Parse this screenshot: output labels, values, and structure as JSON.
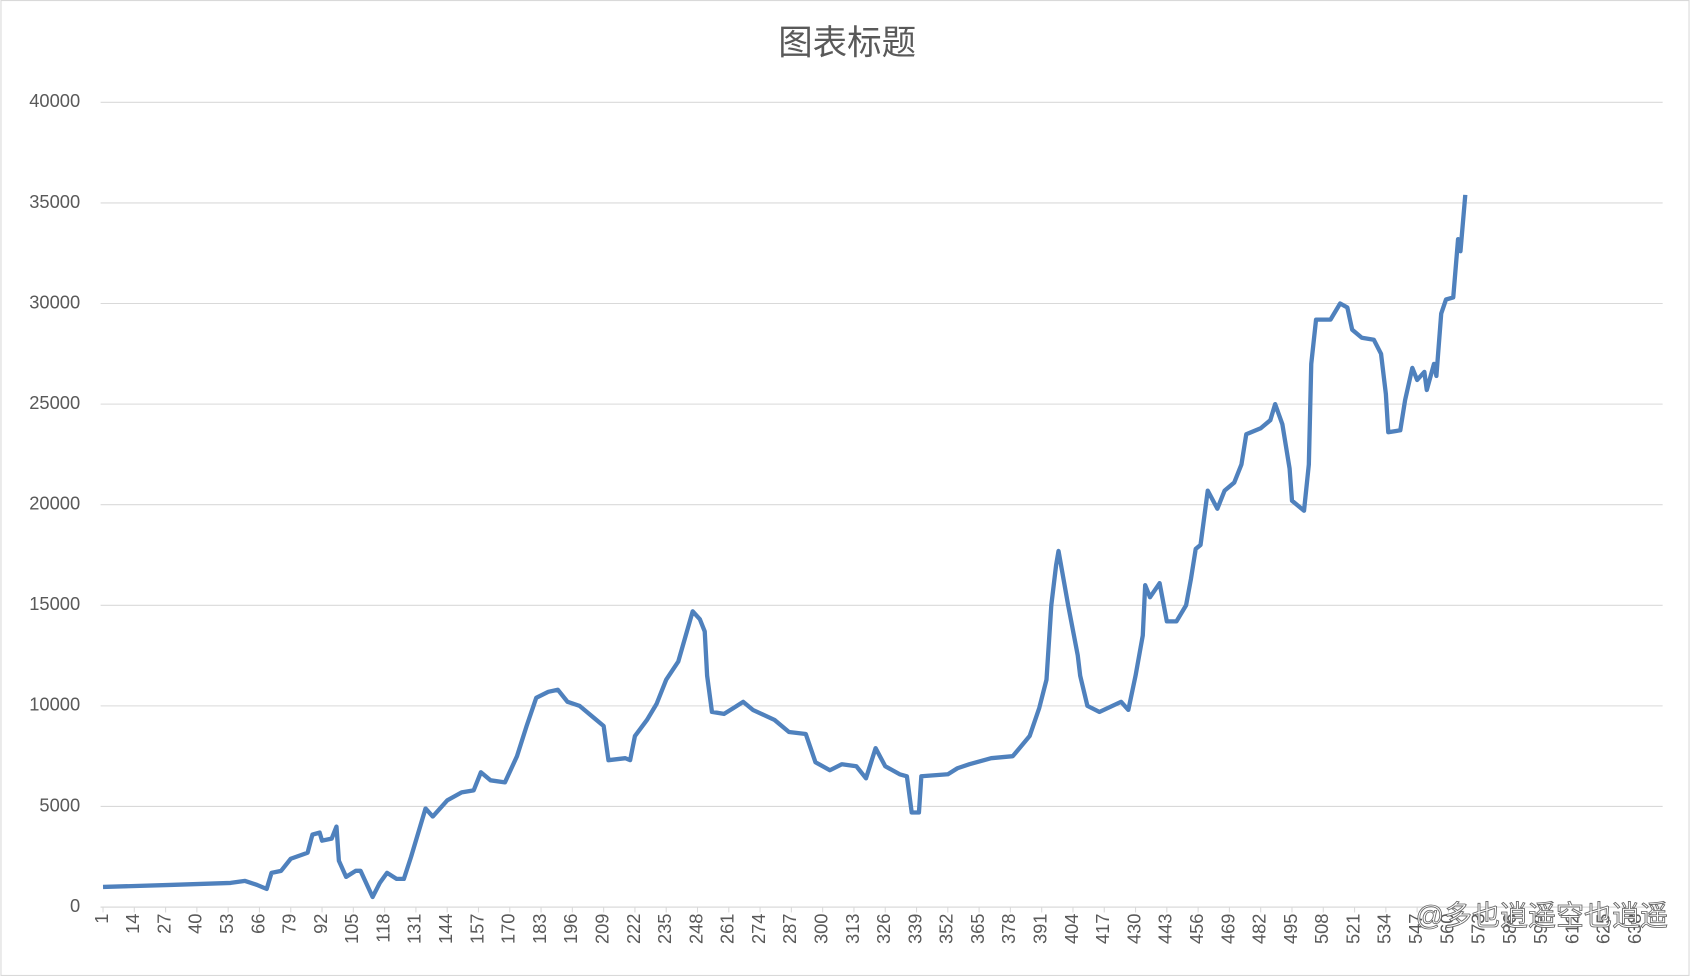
{
  "chart_data": {
    "type": "line",
    "title": "图表标题",
    "watermark": "@多也逍遥空也逍遥",
    "color": "#4f81bd",
    "grid": true,
    "xlim": [
      0,
      649
    ],
    "ylim": [
      0,
      40000
    ],
    "yticks": [
      0,
      5000,
      10000,
      15000,
      20000,
      25000,
      30000,
      35000,
      40000
    ],
    "xticks": [
      1,
      14,
      27,
      40,
      53,
      66,
      79,
      92,
      105,
      118,
      131,
      144,
      157,
      170,
      183,
      196,
      209,
      222,
      235,
      248,
      261,
      274,
      287,
      300,
      313,
      326,
      339,
      352,
      365,
      378,
      391,
      404,
      417,
      430,
      443,
      456,
      469,
      482,
      495,
      508,
      521,
      534,
      547,
      560,
      573,
      586,
      599,
      612,
      625,
      638
    ],
    "x": [
      1,
      29,
      54,
      60,
      65,
      69,
      71,
      75,
      79,
      86,
      88,
      91,
      92,
      96,
      98,
      99,
      102,
      106,
      108,
      113,
      116,
      119,
      123,
      126,
      129,
      135,
      138,
      144,
      150,
      155,
      158,
      162,
      168,
      173,
      177,
      181,
      186,
      190,
      194,
      199,
      205,
      209,
      211,
      218,
      220,
      222,
      227,
      231,
      235,
      240,
      246,
      249,
      251,
      252,
      254,
      259,
      263,
      267,
      271,
      280,
      286,
      293,
      297,
      303,
      308,
      314,
      318,
      322,
      326,
      332,
      335,
      337,
      340,
      341,
      352,
      356,
      361,
      370,
      379,
      386,
      390,
      393,
      395,
      397,
      398,
      402,
      406,
      407,
      410,
      415,
      424,
      427,
      430,
      433,
      434,
      436,
      440,
      443,
      447,
      451,
      453,
      455,
      457,
      460,
      464,
      467,
      471,
      474,
      476,
      482,
      486,
      488,
      491,
      494,
      495,
      500,
      502,
      503,
      505,
      511,
      515,
      518,
      520,
      524,
      529,
      532,
      534,
      535,
      540,
      542,
      545,
      547,
      550,
      551,
      554,
      555,
      557,
      559,
      562,
      564,
      565,
      567
    ],
    "values": [
      1000,
      1100,
      1200,
      1300,
      1100,
      900,
      1700,
      1800,
      2400,
      2700,
      3600,
      3700,
      3300,
      3400,
      4000,
      2300,
      1500,
      1800,
      1800,
      500,
      1200,
      1700,
      1400,
      1400,
      2500,
      4900,
      4500,
      5300,
      5700,
      5800,
      6700,
      6300,
      6200,
      7500,
      9000,
      10400,
      10700,
      10800,
      10200,
      10000,
      9400,
      9000,
      7300,
      7400,
      7300,
      8500,
      9300,
      10100,
      11300,
      12200,
      14700,
      14300,
      13700,
      11500,
      9700,
      9600,
      9900,
      10200,
      9800,
      9300,
      8700,
      8600,
      7200,
      6800,
      7100,
      7000,
      6400,
      7900,
      7000,
      6600,
      6500,
      4700,
      4700,
      6500,
      6600,
      6900,
      7100,
      7400,
      7500,
      8500,
      9900,
      11300,
      15000,
      17000,
      17700,
      15000,
      12500,
      11500,
      10000,
      9700,
      10200,
      9800,
      11500,
      13500,
      16000,
      15400,
      16100,
      14200,
      14200,
      15000,
      16300,
      17800,
      18000,
      20700,
      19800,
      20700,
      21100,
      22000,
      23500,
      23800,
      24200,
      25000,
      24000,
      21800,
      20200,
      19700,
      22000,
      27000,
      29200,
      29200,
      30000,
      29800,
      28700,
      28300,
      28200,
      27500,
      25500,
      23600,
      23700,
      25200,
      26800,
      26200,
      26600,
      25700,
      27000,
      26400,
      29500,
      30200,
      30300,
      33200,
      32600,
      35400
    ]
  }
}
